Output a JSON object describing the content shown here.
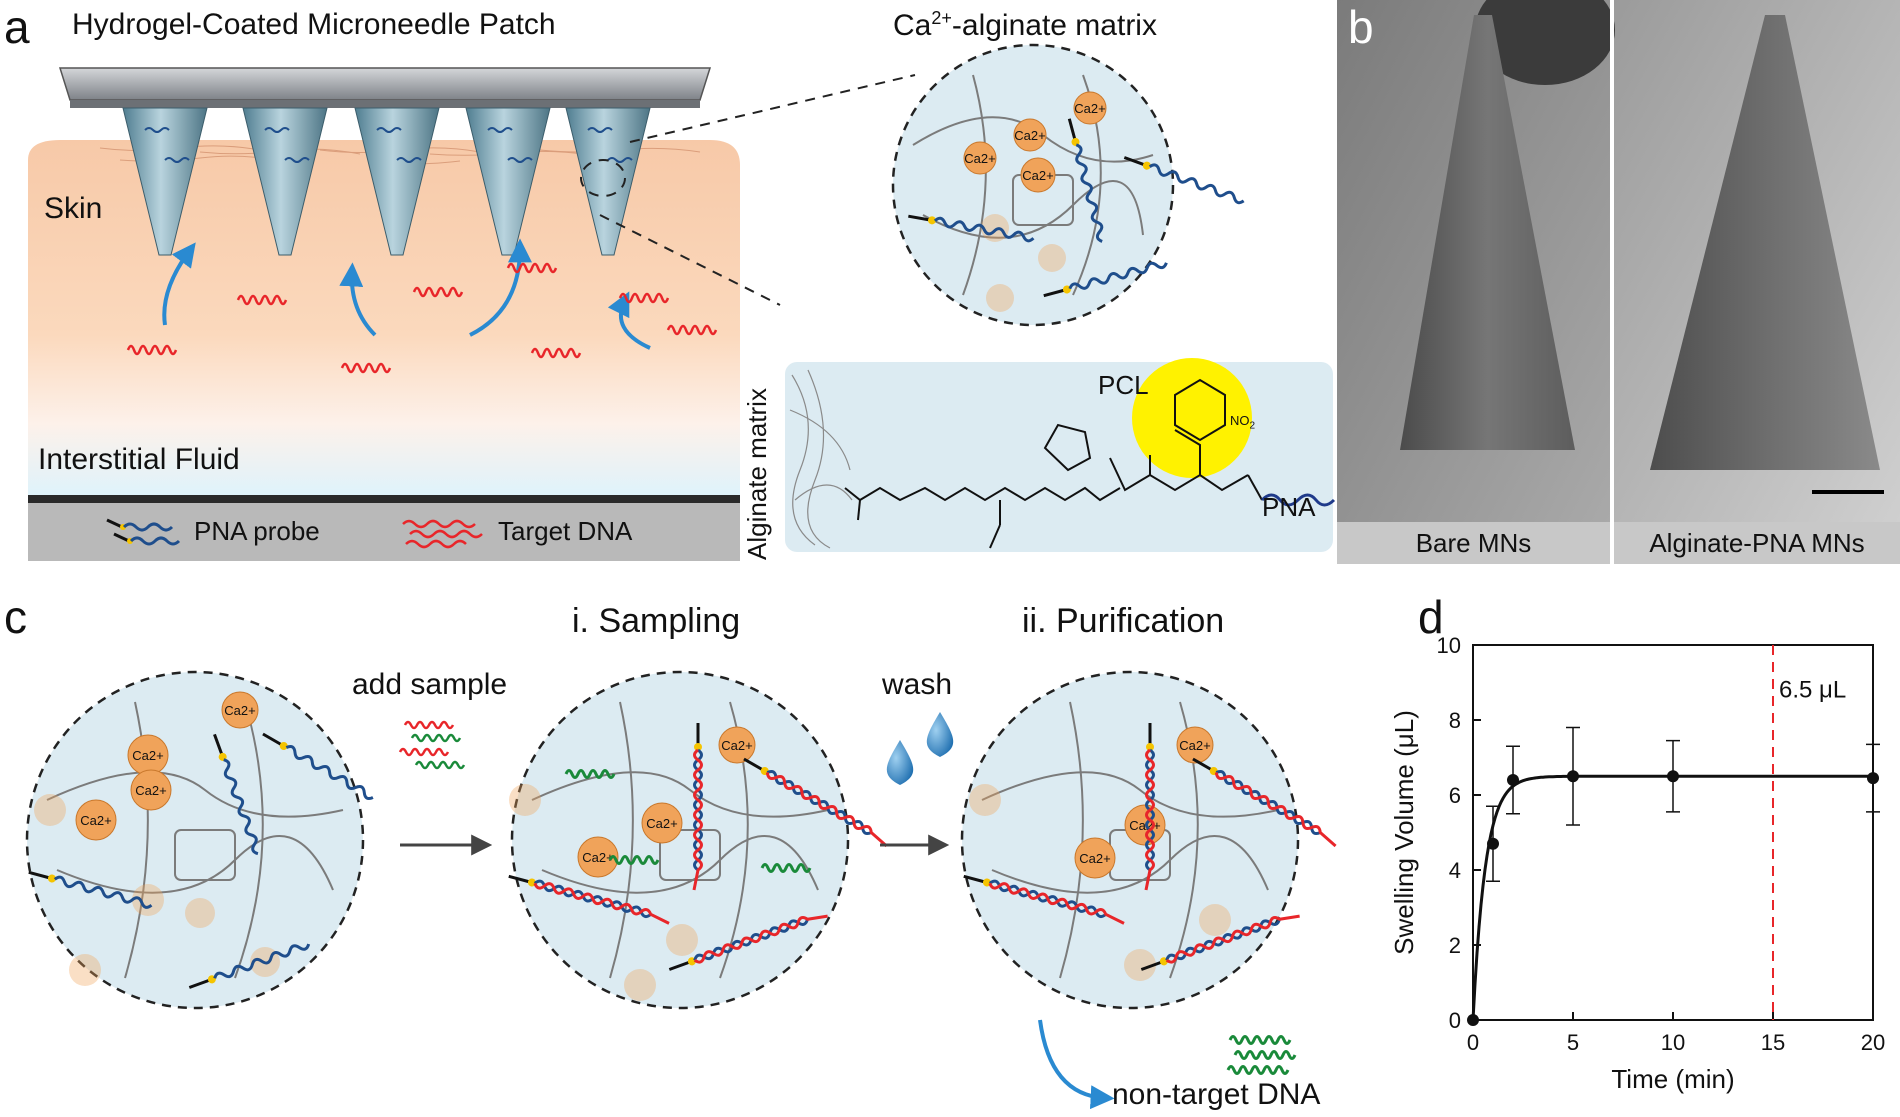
{
  "panel_a": {
    "letter": "a",
    "title": "Hydrogel-Coated Microneedle Patch",
    "matrix_title_prefix": "Ca",
    "matrix_title_sup": "2+",
    "matrix_title_suffix": "-alginate matrix",
    "skin_label": "Skin",
    "fluid_label": "Interstitial Fluid",
    "legend_probe": "PNA probe",
    "legend_target": "Target DNA",
    "alginate_matrix_label": "Alginate matrix",
    "pcl_label": "PCL",
    "pna_label": "PNA",
    "no2_label": "NO",
    "no2_sub": "2",
    "ca_ion": "Ca",
    "ca_sup": "2+"
  },
  "panel_b": {
    "letter": "b",
    "left_caption": "Bare MNs",
    "right_caption": "Alginate-PNA MNs"
  },
  "panel_c": {
    "letter": "c",
    "step1_title": "i. Sampling",
    "step2_title": "ii. Purification",
    "add_sample_label": "add sample",
    "wash_label": "wash",
    "non_target_label": "non-target DNA"
  },
  "panel_d": {
    "letter": "d",
    "annotation": "6.5 μL"
  },
  "colors": {
    "probe_blue": "#1f4e8c",
    "target_red": "#e8262a",
    "nontarget_green": "#1a8a3a",
    "ca_orange": "#f0a35a",
    "needle_blue": "#6f98a8",
    "arrow_blue": "#2a8ad1",
    "dashed_red": "#e8262a",
    "yellow_pcl": "#fff200"
  },
  "chart_data": {
    "type": "scatter",
    "title": "",
    "xlabel": "Time (min)",
    "ylabel": "Swelling Volume (μL)",
    "xlim": [
      0,
      20
    ],
    "ylim": [
      0,
      10
    ],
    "xticks": [
      0,
      5,
      10,
      15,
      20
    ],
    "yticks": [
      0,
      2,
      4,
      6,
      8,
      10
    ],
    "grid": false,
    "series": [
      {
        "x": [
          0,
          1,
          2,
          5,
          10,
          20
        ],
        "y": [
          0,
          4.7,
          6.4,
          6.5,
          6.5,
          6.45
        ],
        "error": [
          0,
          1.0,
          0.9,
          1.3,
          0.95,
          0.9
        ]
      }
    ],
    "fit_curve": {
      "plateau": 6.5,
      "rate": 1.6
    },
    "reference_line": {
      "x": 15,
      "label": "6.5 μL"
    }
  }
}
